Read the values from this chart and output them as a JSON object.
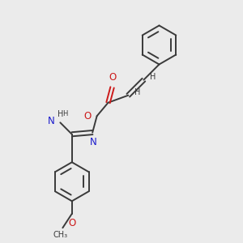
{
  "background_color": "#ebebeb",
  "bond_color": "#3a3a3a",
  "atom_colors": {
    "C": "#3a3a3a",
    "H": "#3a3a3a",
    "N": "#1a1acc",
    "O": "#cc1a1a"
  },
  "figsize": [
    3.0,
    3.0
  ],
  "dpi": 100,
  "bond_lw": 1.4,
  "font_size": 8.5,
  "font_size_small": 7.0
}
